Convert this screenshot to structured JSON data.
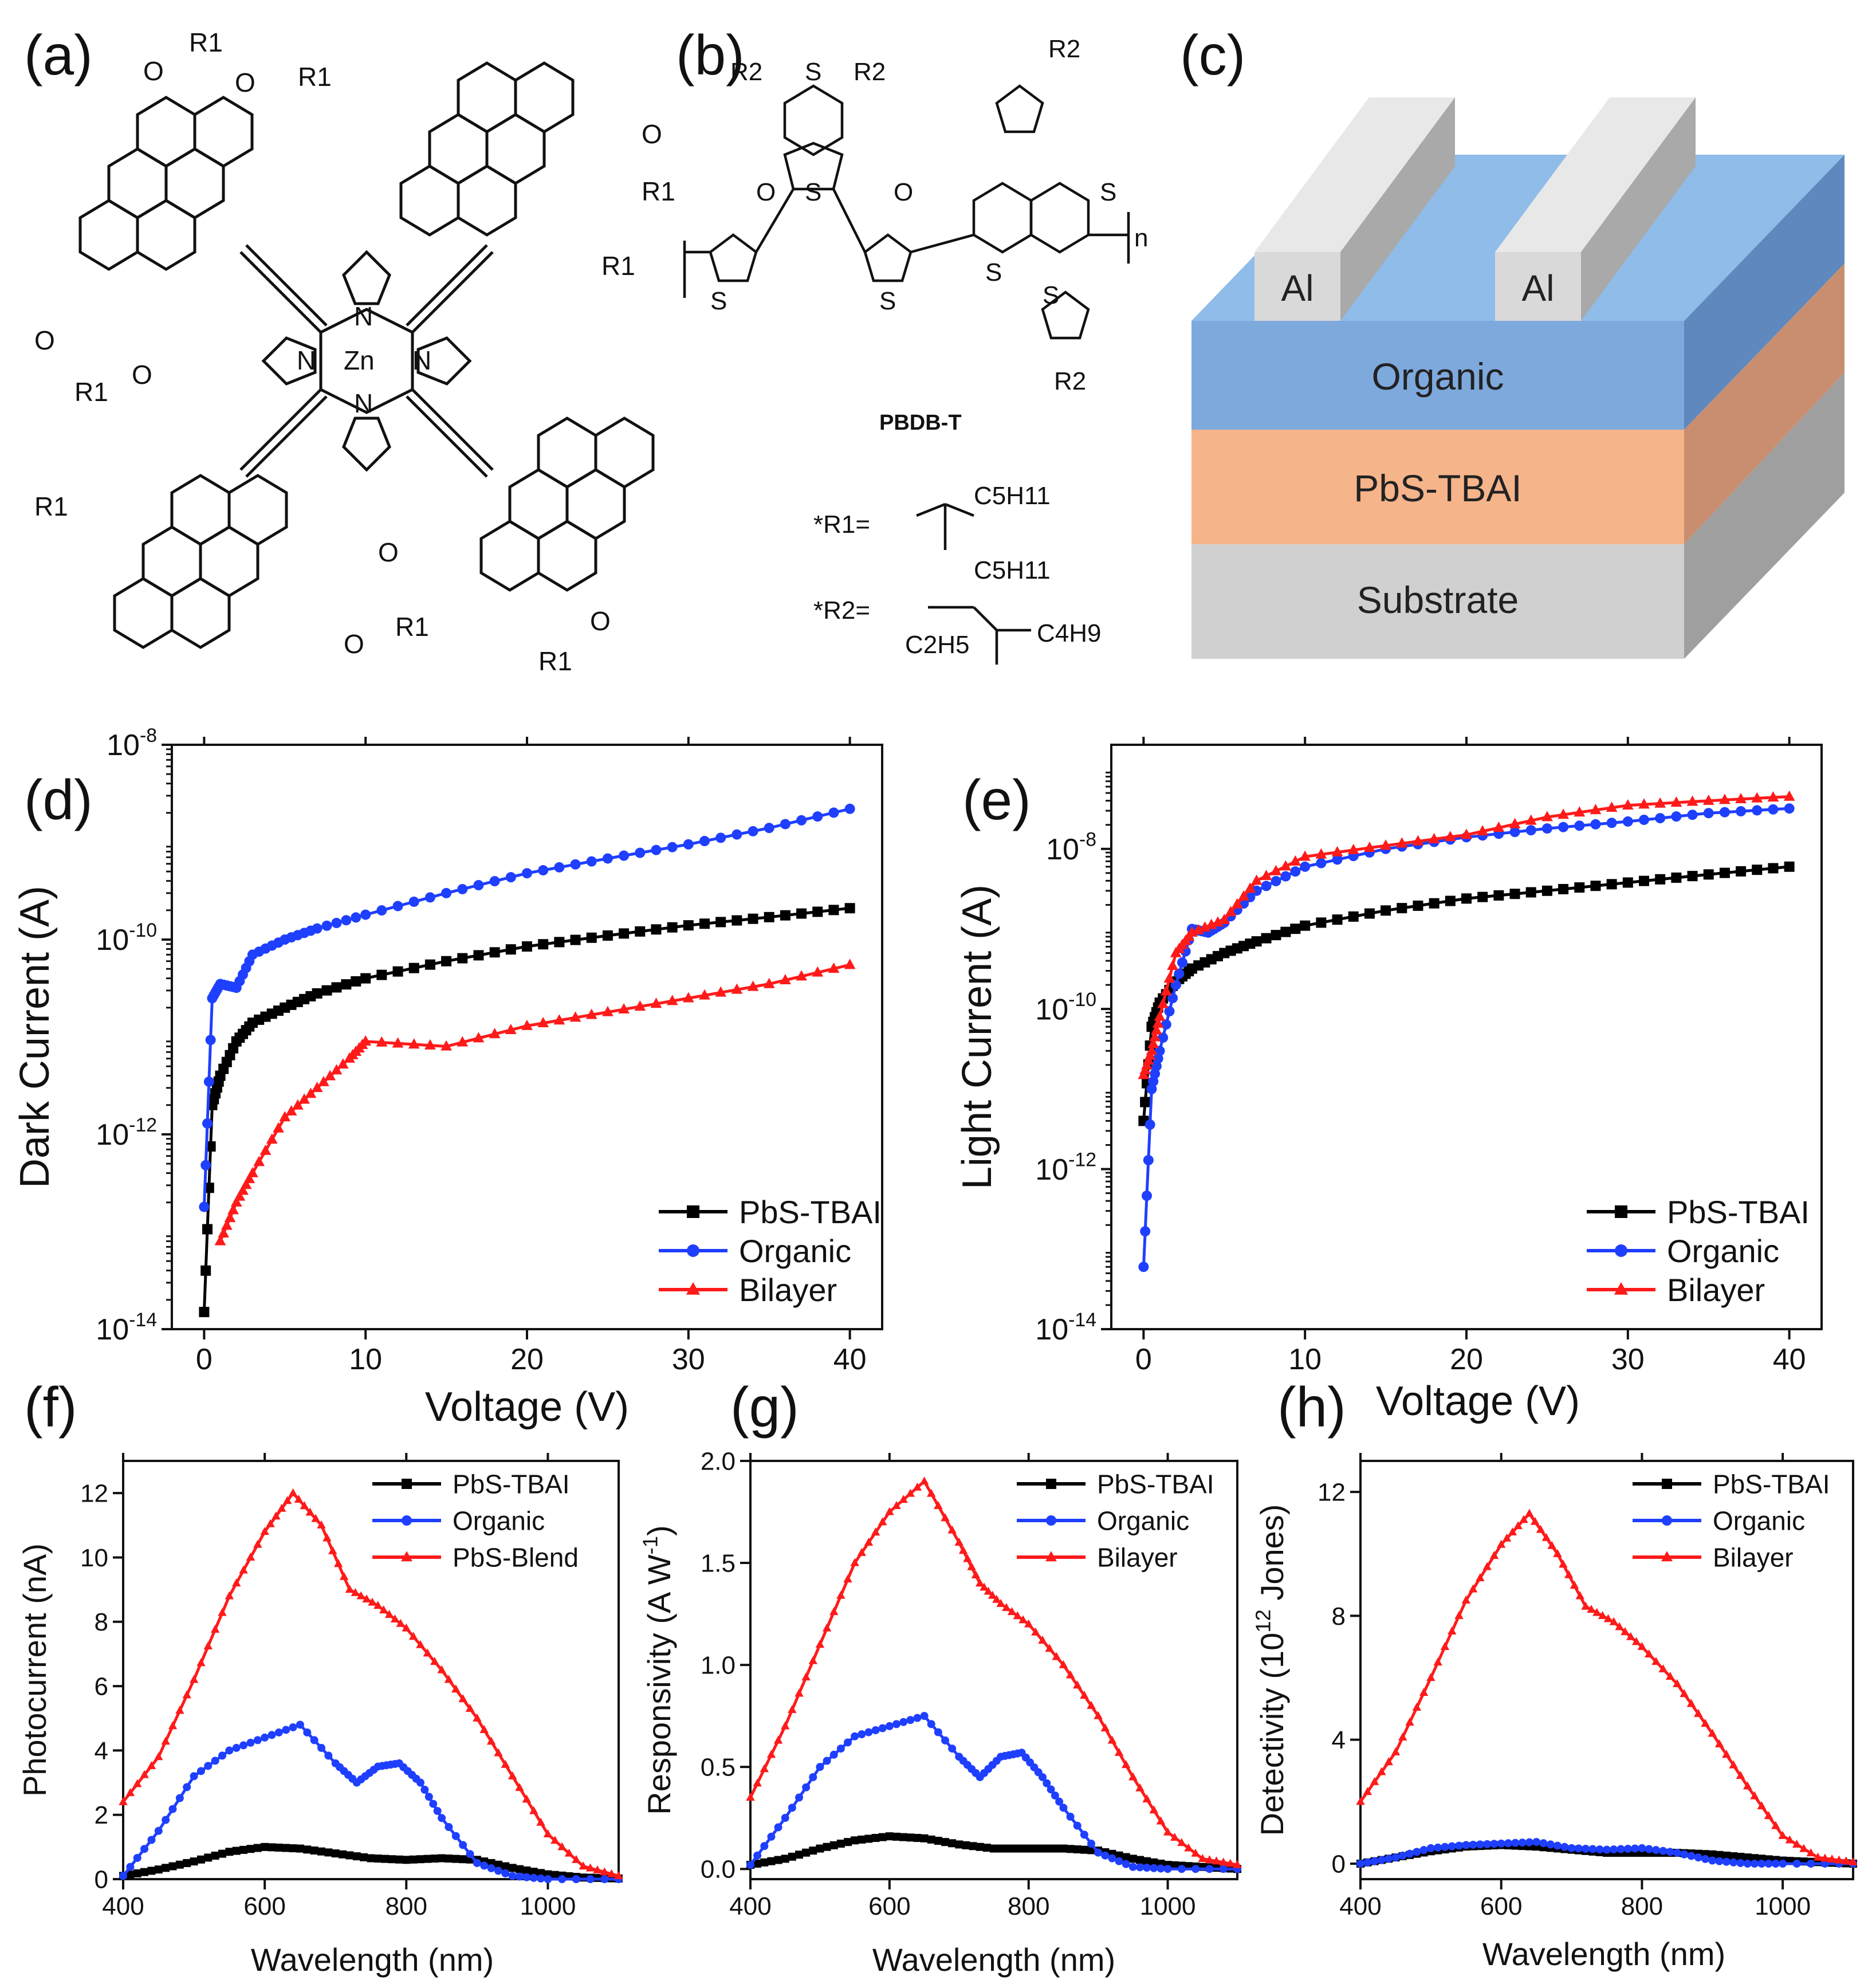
{
  "panels": {
    "a": "(a)",
    "b": "(b)",
    "c": "(c)",
    "d": "(d)",
    "e": "(e)",
    "f": "(f)",
    "g": "(g)",
    "h": "(h)"
  },
  "molecule_a": {
    "center_atom": "Zn",
    "atoms": [
      "N",
      "N",
      "N",
      "N"
    ],
    "substituent": "R1",
    "oxygen": "O"
  },
  "molecule_b": {
    "substituent_r2": "R2",
    "sulfur": "S",
    "oxygen": "O",
    "repeat": "n",
    "polymer_name": "PBDB-T",
    "r1_def": "*R1=",
    "r1_groups": [
      "C5H11",
      "C5H11"
    ],
    "r2_def": "*R2=",
    "r2_groups": [
      "C4H9",
      "C2H5"
    ]
  },
  "device": {
    "electrode_left": "Al",
    "electrode_right": "Al",
    "layer_top": "Organic",
    "layer_middle": "PbS-TBAI",
    "layer_bottom": "Substrate",
    "colors": {
      "electrode": "#d9d9d9",
      "organic": "#7ea9dd",
      "pbs": "#f6b48a",
      "substrate": "#d0d0d0"
    }
  },
  "chart_data": [
    {
      "id": "d",
      "type": "line",
      "xlabel": "Voltage (V)",
      "ylabel": "Dark Current (A)",
      "yscale": "log",
      "xlim": [
        -2,
        42
      ],
      "ylim": [
        1e-14,
        1e-08
      ],
      "xticks": [
        0,
        10,
        20,
        30,
        40
      ],
      "yticks": [
        1e-14,
        1e-12,
        1e-10,
        1e-08
      ],
      "ytick_labels": [
        "10-14",
        "10-12",
        "10-10",
        "10-8"
      ],
      "legend_position": "bottom-right",
      "series": [
        {
          "name": "PbS-TBAI",
          "color": "#000000",
          "marker": "square",
          "x": [
            0,
            0.5,
            1,
            2,
            3,
            5,
            7,
            10,
            15,
            20,
            25,
            30,
            35,
            40
          ],
          "y": [
            1.5e-14,
            2e-12,
            4e-12,
            9e-12,
            1.4e-11,
            2e-11,
            2.8e-11,
            4e-11,
            6e-11,
            8.5e-11,
            1.1e-10,
            1.4e-10,
            1.7e-10,
            2.1e-10
          ]
        },
        {
          "name": "Organic",
          "color": "#1f3fff",
          "marker": "circle",
          "x": [
            0,
            0.5,
            1,
            2,
            3,
            5,
            7,
            10,
            15,
            20,
            25,
            30,
            35,
            40
          ],
          "y": [
            1.8e-13,
            2.5e-11,
            3.5e-11,
            3.2e-11,
            7e-11,
            1e-10,
            1.3e-10,
            1.8e-10,
            3e-10,
            4.8e-10,
            6.8e-10,
            9.5e-10,
            1.4e-09,
            2.2e-09
          ]
        },
        {
          "name": "Bilayer",
          "color": "#ff1a1a",
          "marker": "triangle",
          "x": [
            1,
            2,
            3,
            5,
            7,
            9,
            10,
            15,
            20,
            25,
            30,
            35,
            40
          ],
          "y": [
            8e-14,
            2e-13,
            4e-13,
            1.5e-12,
            3e-12,
            6e-12,
            9e-12,
            8e-12,
            1.3e-11,
            1.8e-11,
            2.5e-11,
            3.5e-11,
            5.5e-11
          ]
        }
      ]
    },
    {
      "id": "e",
      "type": "line",
      "xlabel": "Voltage (V)",
      "ylabel": "Light Current (A)",
      "yscale": "log",
      "xlim": [
        -2,
        42
      ],
      "ylim": [
        1e-14,
        2e-07
      ],
      "xticks": [
        0,
        10,
        20,
        30,
        40
      ],
      "yticks": [
        1e-14,
        1e-12,
        1e-10,
        1e-08
      ],
      "ytick_labels": [
        "10-14",
        "10-12",
        "10-10",
        "10-8"
      ],
      "legend_position": "bottom-right",
      "series": [
        {
          "name": "PbS-TBAI",
          "color": "#000000",
          "marker": "square",
          "x": [
            0,
            0.5,
            1,
            2,
            3,
            5,
            7,
            10,
            15,
            20,
            25,
            30,
            35,
            40
          ],
          "y": [
            4e-12,
            6e-11,
            1.2e-10,
            2.2e-10,
            3.2e-10,
            5e-10,
            7e-10,
            1.1e-09,
            1.7e-09,
            2.4e-09,
            3e-09,
            3.8e-09,
            4.8e-09,
            6e-09
          ]
        },
        {
          "name": "Organic",
          "color": "#1f3fff",
          "marker": "circle",
          "x": [
            0,
            0.5,
            1,
            2,
            3,
            4,
            5,
            7,
            10,
            15,
            20,
            25,
            30,
            35,
            40
          ],
          "y": [
            6e-14,
            1e-11,
            3e-11,
            2e-10,
            1e-09,
            9e-10,
            1.2e-09,
            3e-09,
            6e-09,
            1e-08,
            1.4e-08,
            1.8e-08,
            2.2e-08,
            2.8e-08,
            3.2e-08
          ]
        },
        {
          "name": "Bilayer",
          "color": "#ff1a1a",
          "marker": "triangle",
          "x": [
            0,
            0.5,
            1,
            2,
            3,
            5,
            7,
            10,
            15,
            20,
            25,
            30,
            35,
            40
          ],
          "y": [
            1.5e-11,
            3e-11,
            8e-11,
            5e-10,
            9e-10,
            1.3e-09,
            4e-09,
            8e-09,
            1.1e-08,
            1.5e-08,
            2.5e-08,
            3.5e-08,
            4e-08,
            4.5e-08
          ]
        }
      ]
    },
    {
      "id": "f",
      "type": "line",
      "xlabel": "Wavelength (nm)",
      "ylabel": "Photocurrent (nA)",
      "xlim": [
        400,
        1100
      ],
      "ylim": [
        0,
        13
      ],
      "xticks": [
        400,
        600,
        800,
        1000
      ],
      "yticks": [
        0,
        2,
        4,
        6,
        8,
        10,
        12
      ],
      "legend_position": "top-right",
      "series": [
        {
          "name": "PbS-TBAI",
          "color": "#000000",
          "marker": "square",
          "x": [
            400,
            450,
            500,
            550,
            600,
            650,
            700,
            750,
            800,
            850,
            900,
            950,
            1000,
            1050,
            1100
          ],
          "y": [
            0.1,
            0.3,
            0.55,
            0.85,
            1.0,
            0.95,
            0.8,
            0.65,
            0.6,
            0.65,
            0.6,
            0.35,
            0.15,
            0.05,
            0.02
          ]
        },
        {
          "name": "Organic",
          "color": "#1f3fff",
          "marker": "circle",
          "x": [
            400,
            450,
            500,
            550,
            600,
            650,
            700,
            730,
            760,
            790,
            820,
            850,
            900,
            950,
            1000,
            1100
          ],
          "y": [
            0.1,
            1.5,
            3.2,
            4.0,
            4.4,
            4.8,
            3.6,
            3.0,
            3.5,
            3.6,
            3.0,
            1.9,
            0.5,
            0.1,
            0.0,
            0.0
          ]
        },
        {
          "name": "PbS-Blend",
          "color": "#ff1a1a",
          "marker": "triangle",
          "x": [
            400,
            450,
            500,
            550,
            600,
            640,
            680,
            720,
            760,
            800,
            850,
            900,
            950,
            1000,
            1050,
            1100
          ],
          "y": [
            2.4,
            3.8,
            6.2,
            8.8,
            10.8,
            12.0,
            11.0,
            9.0,
            8.5,
            7.8,
            6.5,
            5.0,
            3.2,
            1.4,
            0.4,
            0.1
          ]
        }
      ]
    },
    {
      "id": "g",
      "type": "line",
      "xlabel": "Wavelength (nm)",
      "ylabel": "Responsivity (A W-1)",
      "xlim": [
        400,
        1100
      ],
      "ylim": [
        -0.05,
        2.0
      ],
      "xticks": [
        400,
        600,
        800,
        1000
      ],
      "yticks": [
        0.0,
        0.5,
        1.0,
        1.5,
        2.0
      ],
      "ytick_labels": [
        "0.0",
        "0.5",
        "1.0",
        "1.5",
        "2.0"
      ],
      "legend_position": "top-right",
      "series": [
        {
          "name": "PbS-TBAI",
          "color": "#000000",
          "marker": "square",
          "x": [
            400,
            450,
            500,
            550,
            600,
            650,
            700,
            750,
            800,
            850,
            900,
            950,
            1000,
            1050,
            1100
          ],
          "y": [
            0.02,
            0.05,
            0.1,
            0.14,
            0.16,
            0.15,
            0.12,
            0.1,
            0.1,
            0.1,
            0.09,
            0.05,
            0.02,
            0.01,
            0.0
          ]
        },
        {
          "name": "Organic",
          "color": "#1f3fff",
          "marker": "circle",
          "x": [
            400,
            450,
            500,
            550,
            600,
            650,
            700,
            730,
            760,
            790,
            820,
            850,
            900,
            950,
            1000,
            1100
          ],
          "y": [
            0.02,
            0.25,
            0.5,
            0.65,
            0.7,
            0.75,
            0.55,
            0.45,
            0.55,
            0.57,
            0.45,
            0.3,
            0.08,
            0.01,
            0.0,
            0.0
          ]
        },
        {
          "name": "Bilayer",
          "color": "#ff1a1a",
          "marker": "triangle",
          "x": [
            400,
            450,
            500,
            550,
            600,
            650,
            700,
            730,
            760,
            800,
            850,
            900,
            950,
            1000,
            1050,
            1100
          ],
          "y": [
            0.35,
            0.7,
            1.1,
            1.5,
            1.75,
            1.9,
            1.6,
            1.4,
            1.3,
            1.2,
            1.0,
            0.75,
            0.45,
            0.18,
            0.05,
            0.02
          ]
        }
      ]
    },
    {
      "id": "h",
      "type": "line",
      "xlabel": "Wavelength (nm)",
      "ylabel": "Detectivity (10^12 Jones)",
      "xlim": [
        400,
        1100
      ],
      "ylim": [
        -0.5,
        13
      ],
      "xticks": [
        400,
        600,
        800,
        1000
      ],
      "yticks": [
        0,
        4,
        8,
        12
      ],
      "legend_position": "top-right",
      "series": [
        {
          "name": "PbS-TBAI",
          "color": "#000000",
          "marker": "square",
          "x": [
            400,
            450,
            500,
            550,
            600,
            650,
            700,
            750,
            800,
            850,
            900,
            950,
            1000,
            1050,
            1100
          ],
          "y": [
            0.0,
            0.2,
            0.4,
            0.55,
            0.6,
            0.55,
            0.45,
            0.35,
            0.35,
            0.35,
            0.3,
            0.2,
            0.1,
            0.05,
            0.0
          ]
        },
        {
          "name": "Organic",
          "color": "#1f3fff",
          "marker": "circle",
          "x": [
            400,
            450,
            500,
            550,
            600,
            650,
            700,
            750,
            800,
            850,
            900,
            950,
            1000,
            1100
          ],
          "y": [
            0.0,
            0.2,
            0.5,
            0.6,
            0.65,
            0.7,
            0.5,
            0.45,
            0.5,
            0.35,
            0.1,
            0.0,
            0.0,
            0.0
          ]
        },
        {
          "name": "Bilayer",
          "color": "#ff1a1a",
          "marker": "triangle",
          "x": [
            400,
            450,
            500,
            550,
            600,
            640,
            680,
            720,
            760,
            800,
            850,
            900,
            950,
            1000,
            1050,
            1100
          ],
          "y": [
            2.0,
            3.6,
            6.0,
            8.5,
            10.3,
            11.3,
            10.0,
            8.3,
            7.8,
            7.0,
            5.8,
            4.2,
            2.5,
            0.9,
            0.2,
            0.05
          ]
        }
      ]
    }
  ]
}
